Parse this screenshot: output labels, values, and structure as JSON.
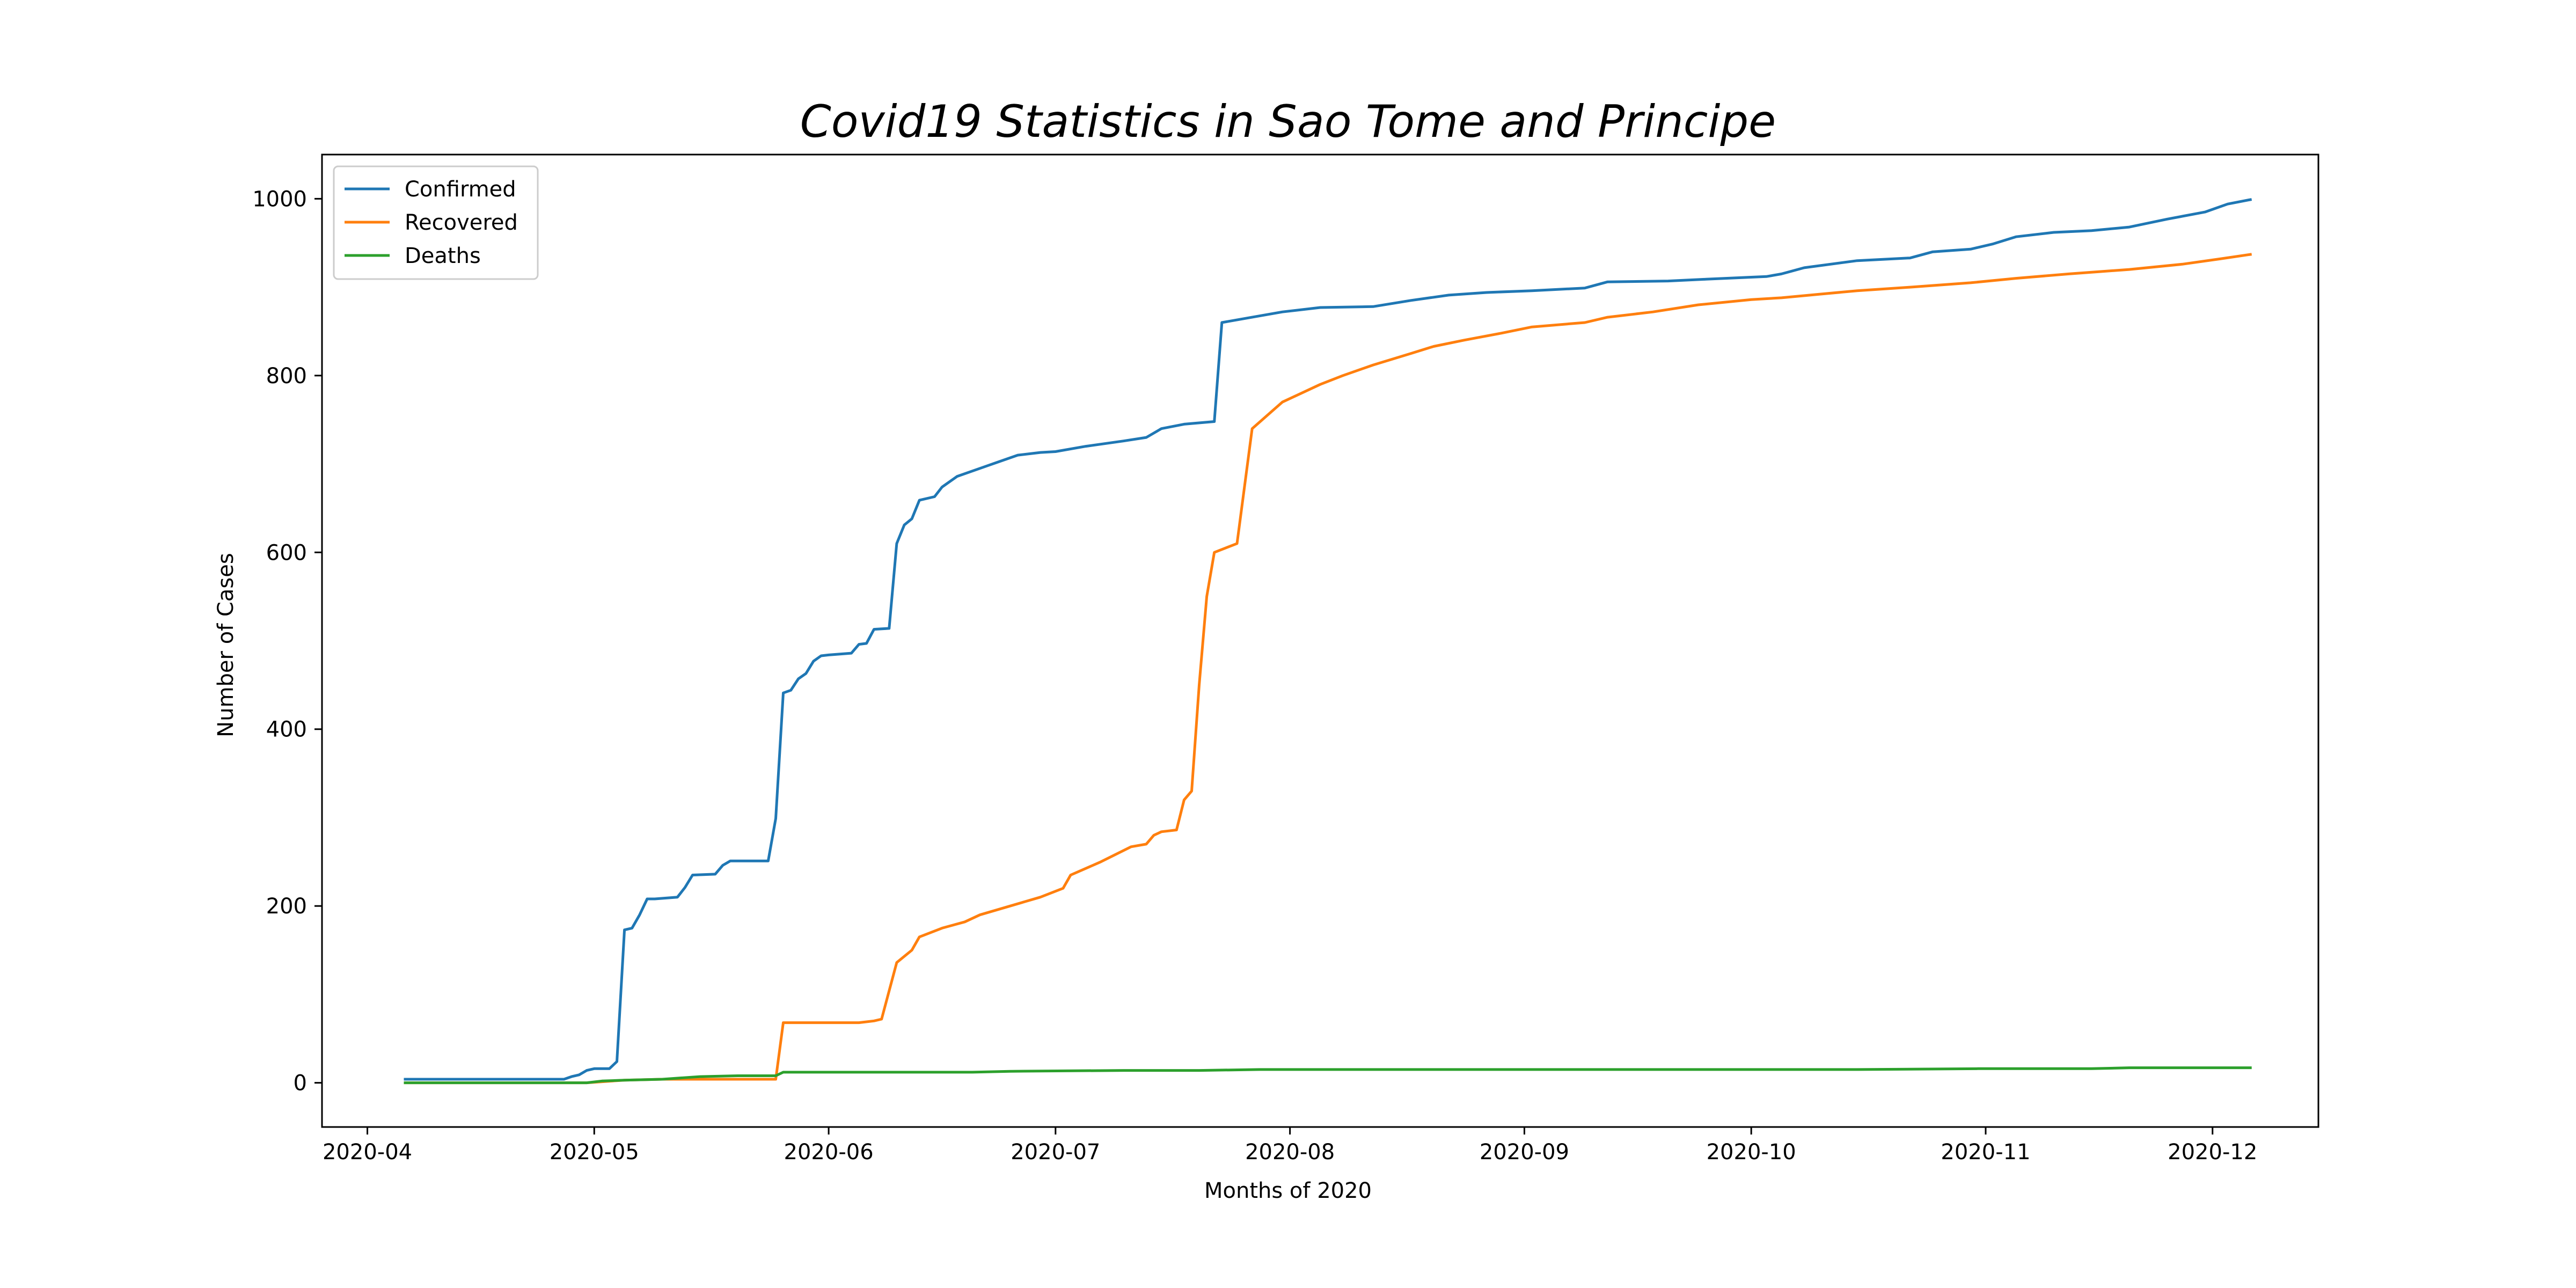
{
  "chart_data": {
    "type": "line",
    "title": "Covid19 Statistics in Sao Tome and Principe",
    "xlabel": "Months of 2020",
    "ylabel": "Number of Cases",
    "xlim": [
      "2020-03-26",
      "2020-12-15"
    ],
    "ylim": [
      -50,
      1050
    ],
    "x_ticks": [
      "2020-04-01",
      "2020-05-01",
      "2020-06-01",
      "2020-07-01",
      "2020-08-01",
      "2020-09-01",
      "2020-10-01",
      "2020-11-01",
      "2020-12-01"
    ],
    "x_tick_labels": [
      "2020-04",
      "2020-05",
      "2020-06",
      "2020-07",
      "2020-08",
      "2020-09",
      "2020-10",
      "2020-11",
      "2020-12"
    ],
    "y_ticks": [
      0,
      200,
      400,
      600,
      800,
      1000
    ],
    "y_tick_labels": [
      "0",
      "200",
      "400",
      "600",
      "800",
      "1000"
    ],
    "grid": false,
    "legend_position": "top-left",
    "series": [
      {
        "name": "Confirmed",
        "color": "#1f77b4",
        "x": [
          "2020-04-06",
          "2020-04-27",
          "2020-04-28",
          "2020-04-29",
          "2020-04-30",
          "2020-05-01",
          "2020-05-02",
          "2020-05-03",
          "2020-05-04",
          "2020-05-05",
          "2020-05-06",
          "2020-05-07",
          "2020-05-08",
          "2020-05-09",
          "2020-05-12",
          "2020-05-13",
          "2020-05-14",
          "2020-05-17",
          "2020-05-18",
          "2020-05-19",
          "2020-05-24",
          "2020-05-25",
          "2020-05-26",
          "2020-05-27",
          "2020-05-28",
          "2020-05-29",
          "2020-05-30",
          "2020-05-31",
          "2020-06-01",
          "2020-06-04",
          "2020-06-05",
          "2020-06-06",
          "2020-06-07",
          "2020-06-09",
          "2020-06-10",
          "2020-06-11",
          "2020-06-12",
          "2020-06-13",
          "2020-06-15",
          "2020-06-16",
          "2020-06-18",
          "2020-06-22",
          "2020-06-23",
          "2020-06-26",
          "2020-06-29",
          "2020-07-01",
          "2020-07-05",
          "2020-07-10",
          "2020-07-13",
          "2020-07-15",
          "2020-07-18",
          "2020-07-22",
          "2020-07-23",
          "2020-07-27",
          "2020-07-31",
          "2020-08-05",
          "2020-08-12",
          "2020-08-17",
          "2020-08-22",
          "2020-08-27",
          "2020-09-02",
          "2020-09-09",
          "2020-09-12",
          "2020-09-20",
          "2020-09-25",
          "2020-10-03",
          "2020-10-05",
          "2020-10-08",
          "2020-10-15",
          "2020-10-22",
          "2020-10-25",
          "2020-10-30",
          "2020-11-02",
          "2020-11-05",
          "2020-11-10",
          "2020-11-15",
          "2020-11-20",
          "2020-11-25",
          "2020-11-30",
          "2020-12-03",
          "2020-12-06"
        ],
        "values": [
          4,
          4,
          7,
          9,
          14,
          16,
          16,
          16,
          24,
          173,
          175,
          190,
          208,
          208,
          210,
          221,
          235,
          236,
          246,
          251,
          251,
          299,
          441,
          444,
          457,
          463,
          477,
          483,
          484,
          486,
          496,
          497,
          513,
          514,
          610,
          631,
          638,
          659,
          663,
          674,
          686,
          698,
          701,
          710,
          713,
          714,
          720,
          726,
          730,
          740,
          745,
          748,
          860,
          866,
          872,
          877,
          878,
          885,
          891,
          894,
          896,
          899,
          906,
          907,
          909,
          912,
          915,
          922,
          930,
          933,
          940,
          943,
          949,
          957,
          962,
          964,
          968,
          977,
          985,
          994,
          999
        ]
      },
      {
        "name": "Recovered",
        "color": "#ff7f0e",
        "x": [
          "2020-04-06",
          "2020-04-30",
          "2020-05-05",
          "2020-05-10",
          "2020-05-25",
          "2020-05-26",
          "2020-06-05",
          "2020-06-07",
          "2020-06-08",
          "2020-06-10",
          "2020-06-12",
          "2020-06-13",
          "2020-06-16",
          "2020-06-19",
          "2020-06-21",
          "2020-06-25",
          "2020-06-27",
          "2020-06-29",
          "2020-07-02",
          "2020-07-03",
          "2020-07-07",
          "2020-07-11",
          "2020-07-13",
          "2020-07-14",
          "2020-07-15",
          "2020-07-16",
          "2020-07-17",
          "2020-07-18",
          "2020-07-19",
          "2020-07-20",
          "2020-07-21",
          "2020-07-22",
          "2020-07-25",
          "2020-07-27",
          "2020-07-31",
          "2020-08-05",
          "2020-08-08",
          "2020-08-12",
          "2020-08-17",
          "2020-08-20",
          "2020-08-24",
          "2020-08-29",
          "2020-09-02",
          "2020-09-09",
          "2020-09-12",
          "2020-09-18",
          "2020-09-24",
          "2020-10-01",
          "2020-10-05",
          "2020-10-10",
          "2020-10-15",
          "2020-10-22",
          "2020-10-30",
          "2020-11-05",
          "2020-11-12",
          "2020-11-20",
          "2020-11-27",
          "2020-12-02",
          "2020-12-06"
        ],
        "values": [
          0,
          0,
          3,
          4,
          4,
          68,
          68,
          70,
          72,
          136,
          150,
          165,
          175,
          182,
          190,
          200,
          205,
          210,
          220,
          235,
          250,
          267,
          270,
          280,
          284,
          285,
          286,
          320,
          330,
          450,
          550,
          600,
          610,
          740,
          770,
          790,
          800,
          812,
          825,
          833,
          840,
          848,
          855,
          860,
          866,
          872,
          880,
          886,
          888,
          892,
          896,
          900,
          905,
          910,
          915,
          920,
          926,
          932,
          937
        ]
      },
      {
        "name": "Deaths",
        "color": "#2ca02c",
        "x": [
          "2020-04-06",
          "2020-04-30",
          "2020-05-02",
          "2020-05-05",
          "2020-05-10",
          "2020-05-15",
          "2020-05-20",
          "2020-05-25",
          "2020-05-26",
          "2020-06-20",
          "2020-06-25",
          "2020-07-10",
          "2020-07-20",
          "2020-07-28",
          "2020-08-15",
          "2020-09-15",
          "2020-10-15",
          "2020-10-31",
          "2020-11-15",
          "2020-11-20",
          "2020-12-06"
        ],
        "values": [
          0,
          0,
          2,
          3,
          4,
          7,
          8,
          8,
          12,
          12,
          13,
          14,
          14,
          15,
          15,
          15,
          15,
          16,
          16,
          17,
          17
        ]
      }
    ]
  }
}
